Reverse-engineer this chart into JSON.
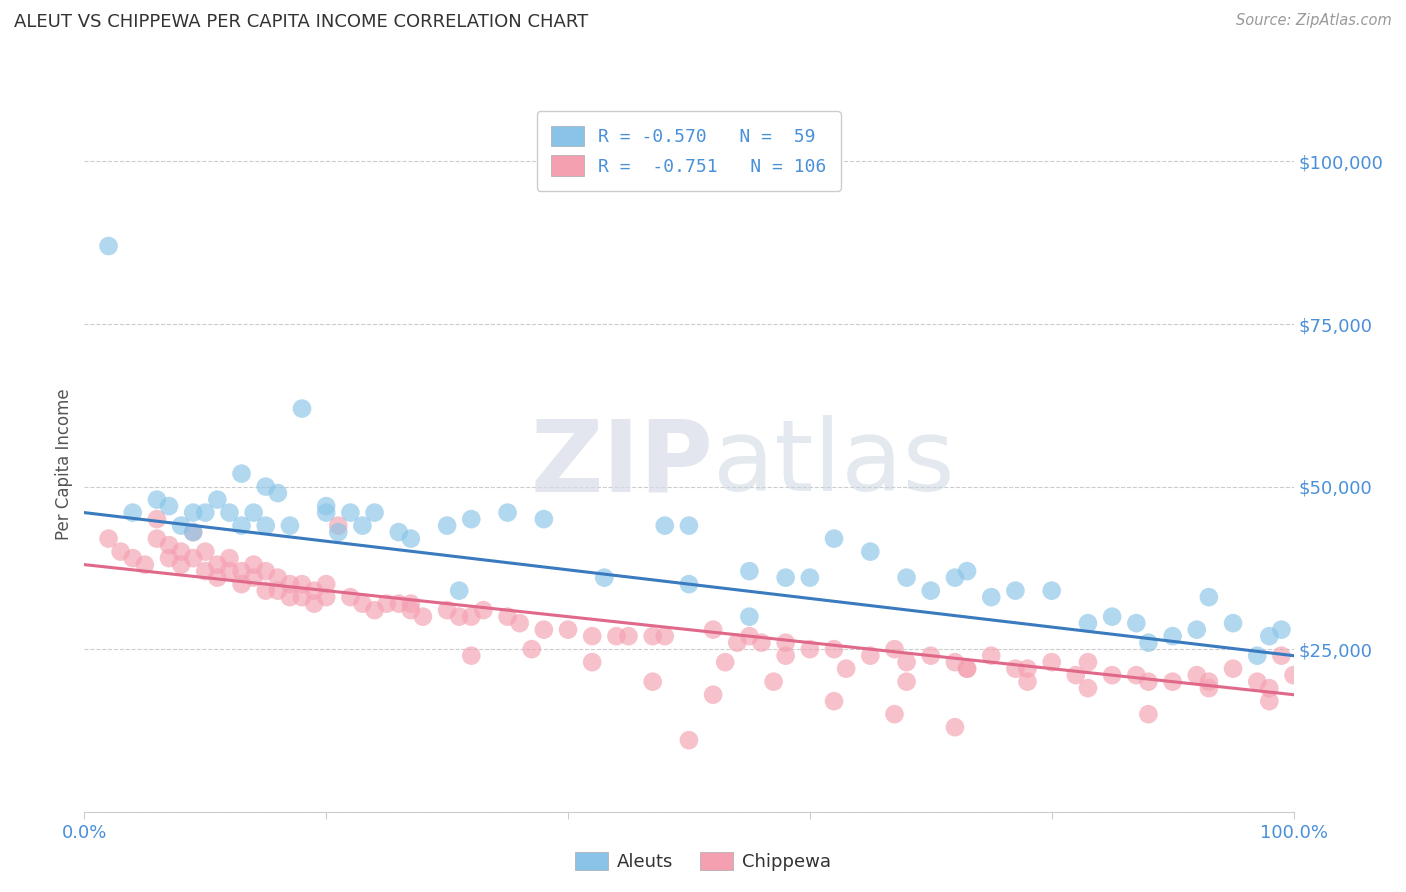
{
  "title": "ALEUT VS CHIPPEWA PER CAPITA INCOME CORRELATION CHART",
  "source": "Source: ZipAtlas.com",
  "ylabel": "Per Capita Income",
  "y_ticks": [
    0,
    25000,
    50000,
    75000,
    100000
  ],
  "y_tick_labels": [
    "",
    "$25,000",
    "$50,000",
    "$75,000",
    "$100,000"
  ],
  "x_min": 0.0,
  "x_max": 1.0,
  "y_min": 0,
  "y_max": 107000,
  "aleut_color": "#89c4e8",
  "chippewa_color": "#f4a0b0",
  "line_color_aleut": "#3a7abf",
  "line_color_chippewa": "#e06888",
  "legend_text_aleut": "R = -0.570   N =  59",
  "legend_text_chippewa": "R =  -0.751   N = 106",
  "watermark_zip": "ZIP",
  "watermark_atlas": "atlas",
  "title_color": "#333333",
  "tick_color": "#4a90d9",
  "source_color": "#999999",
  "aleut_intercept": 46000,
  "aleut_slope": -22000,
  "chippewa_intercept": 38000,
  "chippewa_slope": -20000,
  "aleut_points_x": [
    0.02,
    0.04,
    0.06,
    0.07,
    0.08,
    0.09,
    0.09,
    0.1,
    0.11,
    0.12,
    0.13,
    0.13,
    0.14,
    0.15,
    0.15,
    0.16,
    0.17,
    0.18,
    0.2,
    0.2,
    0.21,
    0.22,
    0.23,
    0.24,
    0.26,
    0.27,
    0.3,
    0.31,
    0.32,
    0.35,
    0.38,
    0.43,
    0.48,
    0.5,
    0.55,
    0.58,
    0.62,
    0.65,
    0.68,
    0.7,
    0.72,
    0.73,
    0.75,
    0.77,
    0.8,
    0.83,
    0.85,
    0.87,
    0.88,
    0.9,
    0.92,
    0.93,
    0.95,
    0.97,
    0.98,
    0.99,
    0.5,
    0.55,
    0.6
  ],
  "aleut_points_y": [
    87000,
    46000,
    48000,
    47000,
    44000,
    46000,
    43000,
    46000,
    48000,
    46000,
    52000,
    44000,
    46000,
    50000,
    44000,
    49000,
    44000,
    62000,
    46000,
    47000,
    43000,
    46000,
    44000,
    46000,
    43000,
    42000,
    44000,
    34000,
    45000,
    46000,
    45000,
    36000,
    44000,
    44000,
    37000,
    36000,
    42000,
    40000,
    36000,
    34000,
    36000,
    37000,
    33000,
    34000,
    34000,
    29000,
    30000,
    29000,
    26000,
    27000,
    28000,
    33000,
    29000,
    24000,
    27000,
    28000,
    35000,
    30000,
    36000
  ],
  "chippewa_points_x": [
    0.02,
    0.03,
    0.04,
    0.05,
    0.06,
    0.06,
    0.07,
    0.07,
    0.08,
    0.08,
    0.09,
    0.09,
    0.1,
    0.1,
    0.11,
    0.11,
    0.12,
    0.12,
    0.13,
    0.13,
    0.14,
    0.14,
    0.15,
    0.15,
    0.16,
    0.16,
    0.17,
    0.17,
    0.18,
    0.18,
    0.19,
    0.19,
    0.2,
    0.2,
    0.21,
    0.22,
    0.23,
    0.24,
    0.25,
    0.26,
    0.27,
    0.28,
    0.3,
    0.31,
    0.32,
    0.33,
    0.35,
    0.36,
    0.38,
    0.4,
    0.42,
    0.44,
    0.45,
    0.47,
    0.5,
    0.52,
    0.54,
    0.55,
    0.56,
    0.58,
    0.6,
    0.62,
    0.65,
    0.67,
    0.68,
    0.7,
    0.72,
    0.73,
    0.75,
    0.77,
    0.78,
    0.8,
    0.82,
    0.83,
    0.85,
    0.87,
    0.88,
    0.9,
    0.92,
    0.93,
    0.95,
    0.97,
    0.98,
    0.99,
    1.0,
    0.48,
    0.53,
    0.58,
    0.63,
    0.68,
    0.73,
    0.78,
    0.83,
    0.88,
    0.93,
    0.98,
    0.27,
    0.32,
    0.37,
    0.42,
    0.47,
    0.52,
    0.57,
    0.62,
    0.67,
    0.72
  ],
  "chippewa_points_y": [
    42000,
    40000,
    39000,
    38000,
    45000,
    42000,
    41000,
    39000,
    40000,
    38000,
    43000,
    39000,
    40000,
    37000,
    38000,
    36000,
    39000,
    37000,
    37000,
    35000,
    38000,
    36000,
    37000,
    34000,
    36000,
    34000,
    35000,
    33000,
    35000,
    33000,
    34000,
    32000,
    35000,
    33000,
    44000,
    33000,
    32000,
    31000,
    32000,
    32000,
    31000,
    30000,
    31000,
    30000,
    30000,
    31000,
    30000,
    29000,
    28000,
    28000,
    27000,
    27000,
    27000,
    27000,
    11000,
    28000,
    26000,
    27000,
    26000,
    26000,
    25000,
    25000,
    24000,
    25000,
    23000,
    24000,
    23000,
    22000,
    24000,
    22000,
    22000,
    23000,
    21000,
    23000,
    21000,
    21000,
    20000,
    20000,
    21000,
    20000,
    22000,
    20000,
    19000,
    24000,
    21000,
    27000,
    23000,
    24000,
    22000,
    20000,
    22000,
    20000,
    19000,
    15000,
    19000,
    17000,
    32000,
    24000,
    25000,
    23000,
    20000,
    18000,
    20000,
    17000,
    15000,
    13000
  ]
}
